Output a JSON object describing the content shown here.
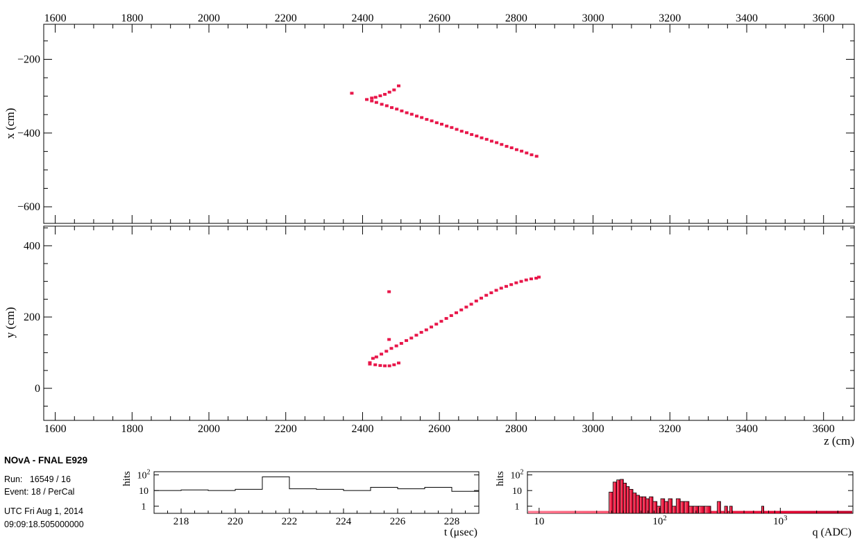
{
  "info": {
    "experiment": "NOvA - FNAL E929",
    "run_line": "Run:   16549 / 16",
    "event_line": "Event: 18 / PerCal",
    "date_line": "UTC Fri Aug 1, 2014",
    "time_line": "09:09:18.505000000"
  },
  "colors": {
    "hit": "#e8174a",
    "axis": "#000000",
    "hist_fill": "#ff6b86"
  },
  "chart_data": [
    {
      "type": "scatter",
      "name": "xz-view",
      "xlabel": "",
      "ylabel": "x (cm)",
      "xlim": [
        1570,
        3680
      ],
      "ylim": [
        -645,
        -105
      ],
      "x_ticks": [
        1600,
        1800,
        2000,
        2200,
        2400,
        2600,
        2800,
        3000,
        3200,
        3400,
        3600
      ],
      "y_ticks": [
        -200,
        -400,
        -600
      ],
      "tick_labels_top": [
        "1600",
        "1800",
        "2000",
        "2200",
        "2400",
        "2600",
        "2800",
        "3000",
        "3200",
        "3400",
        "3600"
      ],
      "y_tick_labels": [
        "−200",
        "−400",
        "−600"
      ],
      "points": [
        [
          2372,
          -292
        ],
        [
          2411,
          -309
        ],
        [
          2424,
          -305
        ],
        [
          2424,
          -313
        ],
        [
          2434,
          -303
        ],
        [
          2446,
          -299
        ],
        [
          2458,
          -295
        ],
        [
          2470,
          -289
        ],
        [
          2482,
          -283
        ],
        [
          2494,
          -272
        ],
        [
          2436,
          -317
        ],
        [
          2450,
          -322
        ],
        [
          2463,
          -326
        ],
        [
          2476,
          -331
        ],
        [
          2489,
          -335
        ],
        [
          2502,
          -340
        ],
        [
          2515,
          -345
        ],
        [
          2528,
          -349
        ],
        [
          2541,
          -354
        ],
        [
          2554,
          -358
        ],
        [
          2567,
          -363
        ],
        [
          2580,
          -367
        ],
        [
          2593,
          -372
        ],
        [
          2606,
          -376
        ],
        [
          2619,
          -381
        ],
        [
          2632,
          -385
        ],
        [
          2645,
          -390
        ],
        [
          2658,
          -395
        ],
        [
          2671,
          -399
        ],
        [
          2684,
          -404
        ],
        [
          2697,
          -408
        ],
        [
          2710,
          -413
        ],
        [
          2723,
          -417
        ],
        [
          2736,
          -422
        ],
        [
          2749,
          -426
        ],
        [
          2762,
          -431
        ],
        [
          2775,
          -436
        ],
        [
          2788,
          -440
        ],
        [
          2801,
          -445
        ],
        [
          2814,
          -449
        ],
        [
          2827,
          -454
        ],
        [
          2840,
          -459
        ],
        [
          2853,
          -463
        ]
      ]
    },
    {
      "type": "scatter",
      "name": "yz-view",
      "xlabel": "z (cm)",
      "ylabel": "y (cm)",
      "xlim": [
        1570,
        3680
      ],
      "ylim": [
        -90,
        455
      ],
      "x_ticks": [
        1600,
        1800,
        2000,
        2200,
        2400,
        2600,
        2800,
        3000,
        3200,
        3400,
        3600
      ],
      "y_ticks": [
        0,
        200,
        400
      ],
      "tick_labels_bottom": [
        "1600",
        "1800",
        "2000",
        "2200",
        "2400",
        "2600",
        "2800",
        "3000",
        "3200",
        "3400",
        "3600"
      ],
      "y_tick_labels": [
        "0",
        "200",
        "400"
      ],
      "points": [
        [
          2419,
          72
        ],
        [
          2419,
          68
        ],
        [
          2427,
          84
        ],
        [
          2433,
          66
        ],
        [
          2446,
          64
        ],
        [
          2458,
          63
        ],
        [
          2470,
          63
        ],
        [
          2482,
          66
        ],
        [
          2494,
          71
        ],
        [
          2469,
          271
        ],
        [
          2469,
          137
        ],
        [
          2436,
          88
        ],
        [
          2449,
          96
        ],
        [
          2462,
          104
        ],
        [
          2475,
          112
        ],
        [
          2488,
          119
        ],
        [
          2501,
          126
        ],
        [
          2514,
          134
        ],
        [
          2527,
          141
        ],
        [
          2540,
          149
        ],
        [
          2553,
          157
        ],
        [
          2566,
          164
        ],
        [
          2579,
          172
        ],
        [
          2592,
          180
        ],
        [
          2605,
          188
        ],
        [
          2618,
          196
        ],
        [
          2631,
          204
        ],
        [
          2644,
          212
        ],
        [
          2657,
          220
        ],
        [
          2670,
          228
        ],
        [
          2683,
          236
        ],
        [
          2696,
          245
        ],
        [
          2709,
          253
        ],
        [
          2722,
          261
        ],
        [
          2735,
          268
        ],
        [
          2748,
          275
        ],
        [
          2761,
          281
        ],
        [
          2774,
          286
        ],
        [
          2787,
          291
        ],
        [
          2800,
          296
        ],
        [
          2813,
          300
        ],
        [
          2826,
          304
        ],
        [
          2839,
          307
        ],
        [
          2852,
          309
        ],
        [
          2859,
          312
        ]
      ]
    },
    {
      "type": "bar",
      "name": "time-histogram",
      "xlabel": "t (μsec)",
      "ylabel": "hits",
      "xlim": [
        217,
        229
      ],
      "y_scale": "log",
      "ylim": [
        0.35,
        160
      ],
      "x_ticks": [
        218,
        220,
        222,
        224,
        226,
        228
      ],
      "y_tick_labels": [
        "1",
        "10",
        "10²"
      ],
      "bins": [
        {
          "x0": 217,
          "x1": 218,
          "value": 10
        },
        {
          "x0": 218,
          "x1": 219,
          "value": 11
        },
        {
          "x0": 219,
          "x1": 220,
          "value": 10
        },
        {
          "x0": 220,
          "x1": 221,
          "value": 12
        },
        {
          "x0": 221,
          "x1": 222,
          "value": 75
        },
        {
          "x0": 222,
          "x1": 223,
          "value": 13
        },
        {
          "x0": 223,
          "x1": 224,
          "value": 12
        },
        {
          "x0": 224,
          "x1": 225,
          "value": 10
        },
        {
          "x0": 225,
          "x1": 226,
          "value": 16
        },
        {
          "x0": 226,
          "x1": 227,
          "value": 13
        },
        {
          "x0": 227,
          "x1": 228,
          "value": 16
        },
        {
          "x0": 228,
          "x1": 229,
          "value": 9
        }
      ]
    },
    {
      "type": "bar",
      "name": "charge-histogram",
      "xlabel": "q (ADC)",
      "ylabel": "hits",
      "x_scale": "log",
      "xlim": [
        8,
        4000
      ],
      "y_scale": "log",
      "ylim": [
        0.35,
        160
      ],
      "x_tick_labels": [
        "10",
        "10²",
        "10³"
      ],
      "y_tick_labels": [
        "1",
        "10",
        "10²"
      ],
      "baseline_value": 0.5,
      "bins": [
        {
          "x0": 38,
          "x1": 41,
          "value": 8
        },
        {
          "x0": 41,
          "x1": 44,
          "value": 35
        },
        {
          "x0": 44,
          "x1": 47,
          "value": 48
        },
        {
          "x0": 47,
          "x1": 50,
          "value": 52
        },
        {
          "x0": 50,
          "x1": 53,
          "value": 30
        },
        {
          "x0": 53,
          "x1": 56,
          "value": 18
        },
        {
          "x0": 56,
          "x1": 60,
          "value": 12
        },
        {
          "x0": 60,
          "x1": 64,
          "value": 7
        },
        {
          "x0": 64,
          "x1": 68,
          "value": 5
        },
        {
          "x0": 68,
          "x1": 72,
          "value": 4
        },
        {
          "x0": 72,
          "x1": 77,
          "value": 4
        },
        {
          "x0": 77,
          "x1": 82,
          "value": 3
        },
        {
          "x0": 82,
          "x1": 88,
          "value": 4
        },
        {
          "x0": 88,
          "x1": 95,
          "value": 2
        },
        {
          "x0": 95,
          "x1": 102,
          "value": 1
        },
        {
          "x0": 102,
          "x1": 110,
          "value": 3
        },
        {
          "x0": 110,
          "x1": 118,
          "value": 2
        },
        {
          "x0": 118,
          "x1": 127,
          "value": 3
        },
        {
          "x0": 127,
          "x1": 137,
          "value": 1
        },
        {
          "x0": 137,
          "x1": 148,
          "value": 3
        },
        {
          "x0": 148,
          "x1": 160,
          "value": 2
        },
        {
          "x0": 160,
          "x1": 175,
          "value": 2
        },
        {
          "x0": 175,
          "x1": 190,
          "value": 1
        },
        {
          "x0": 190,
          "x1": 210,
          "value": 1
        },
        {
          "x0": 210,
          "x1": 235,
          "value": 1
        },
        {
          "x0": 235,
          "x1": 265,
          "value": 1
        },
        {
          "x0": 300,
          "x1": 320,
          "value": 2
        },
        {
          "x0": 345,
          "x1": 365,
          "value": 1
        },
        {
          "x0": 380,
          "x1": 400,
          "value": 1
        },
        {
          "x0": 700,
          "x1": 730,
          "value": 1
        }
      ]
    }
  ]
}
